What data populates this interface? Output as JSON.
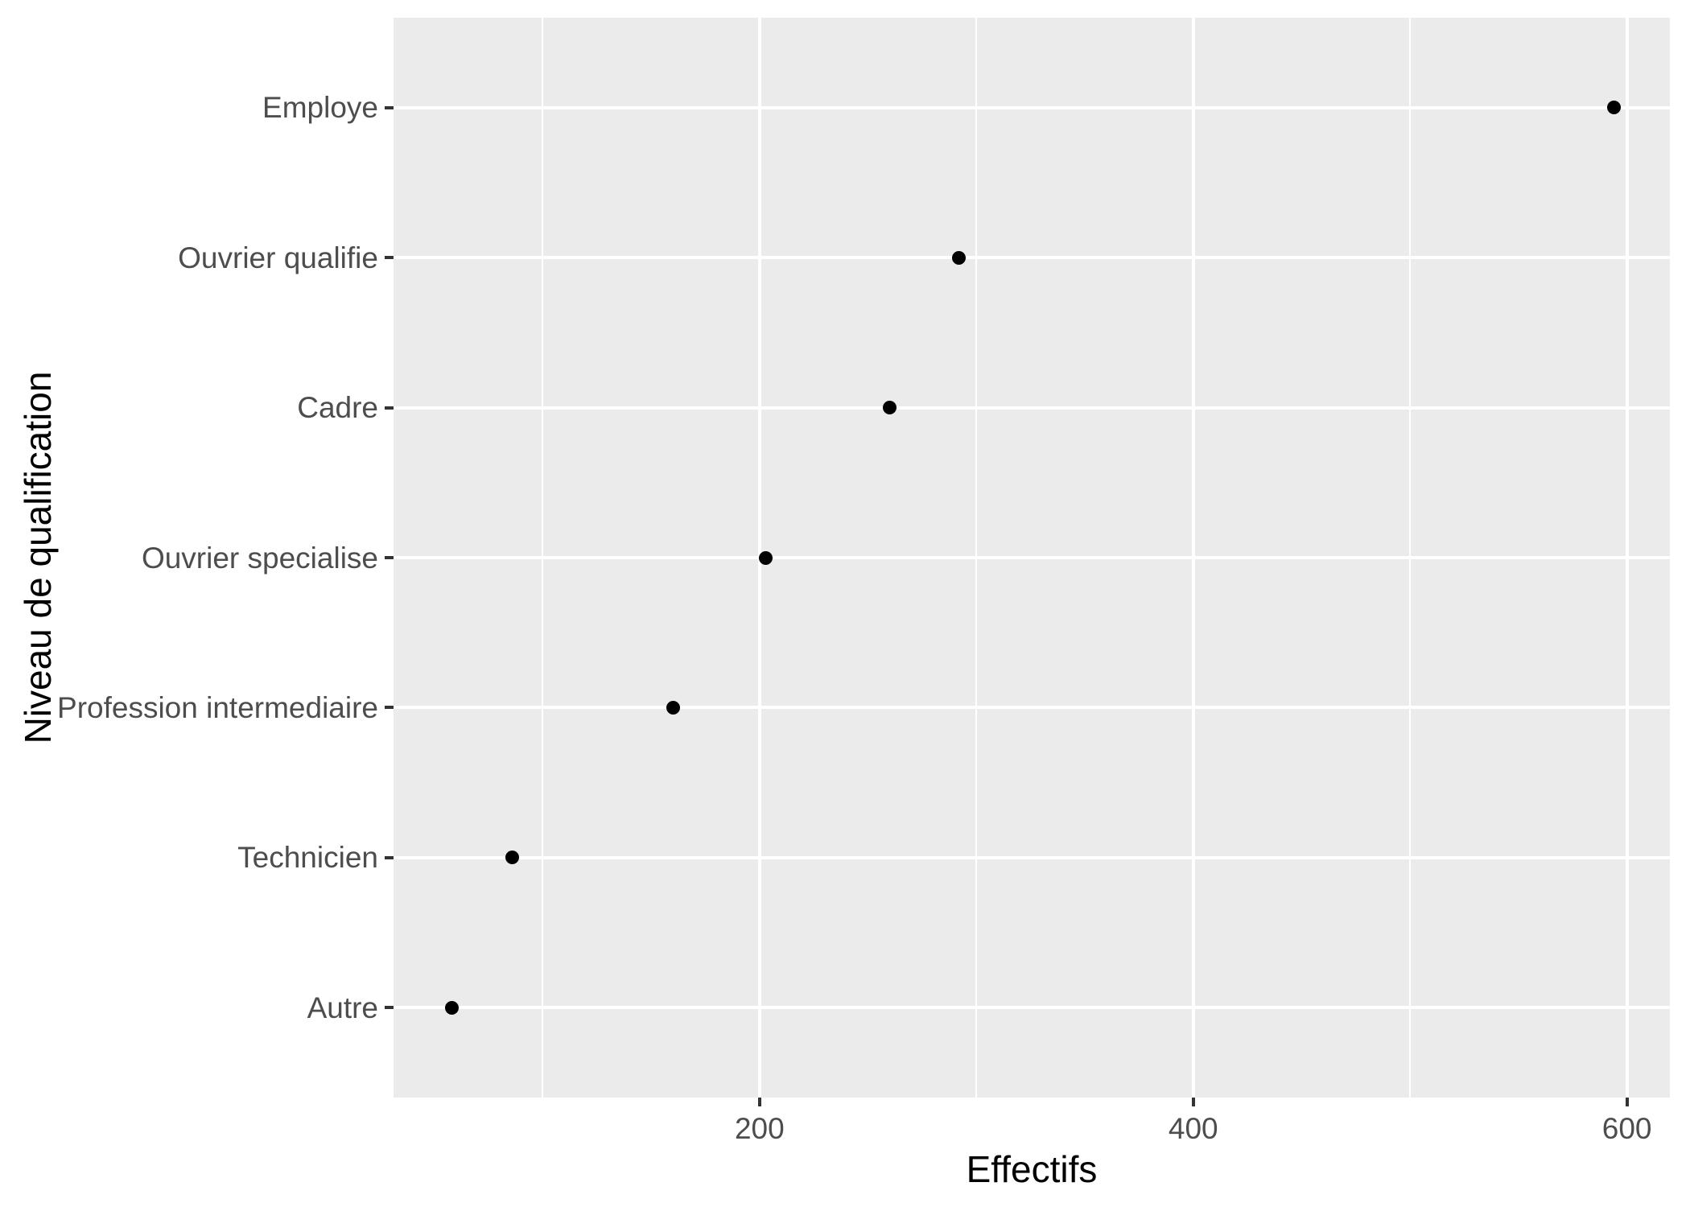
{
  "chart_data": {
    "type": "scatter",
    "subtype": "cleveland-dot-plot",
    "orientation": "horizontal",
    "title": "",
    "xlabel": "Effectifs",
    "ylabel": "Niveau de qualification",
    "categories": [
      "Employe",
      "Ouvrier qualifie",
      "Cadre",
      "Ouvrier specialise",
      "Profession intermediaire",
      "Technicien",
      "Autre"
    ],
    "values": [
      594,
      292,
      260,
      203,
      160,
      86,
      58
    ],
    "x_major_ticks": [
      200,
      400,
      600
    ],
    "x_minor_ticks": [
      100,
      300,
      500
    ],
    "xlim": [
      31.2,
      619.8
    ],
    "grid": true,
    "legend": "none",
    "style": {
      "panel_background": "#EBEBEB",
      "gridline_color": "#FFFFFF",
      "point_color": "#000000",
      "tick_mark_color": "#333333",
      "tick_label_color": "#4D4D4D",
      "axis_title_color": "#000000",
      "figure_background": "#FFFFFF"
    }
  }
}
